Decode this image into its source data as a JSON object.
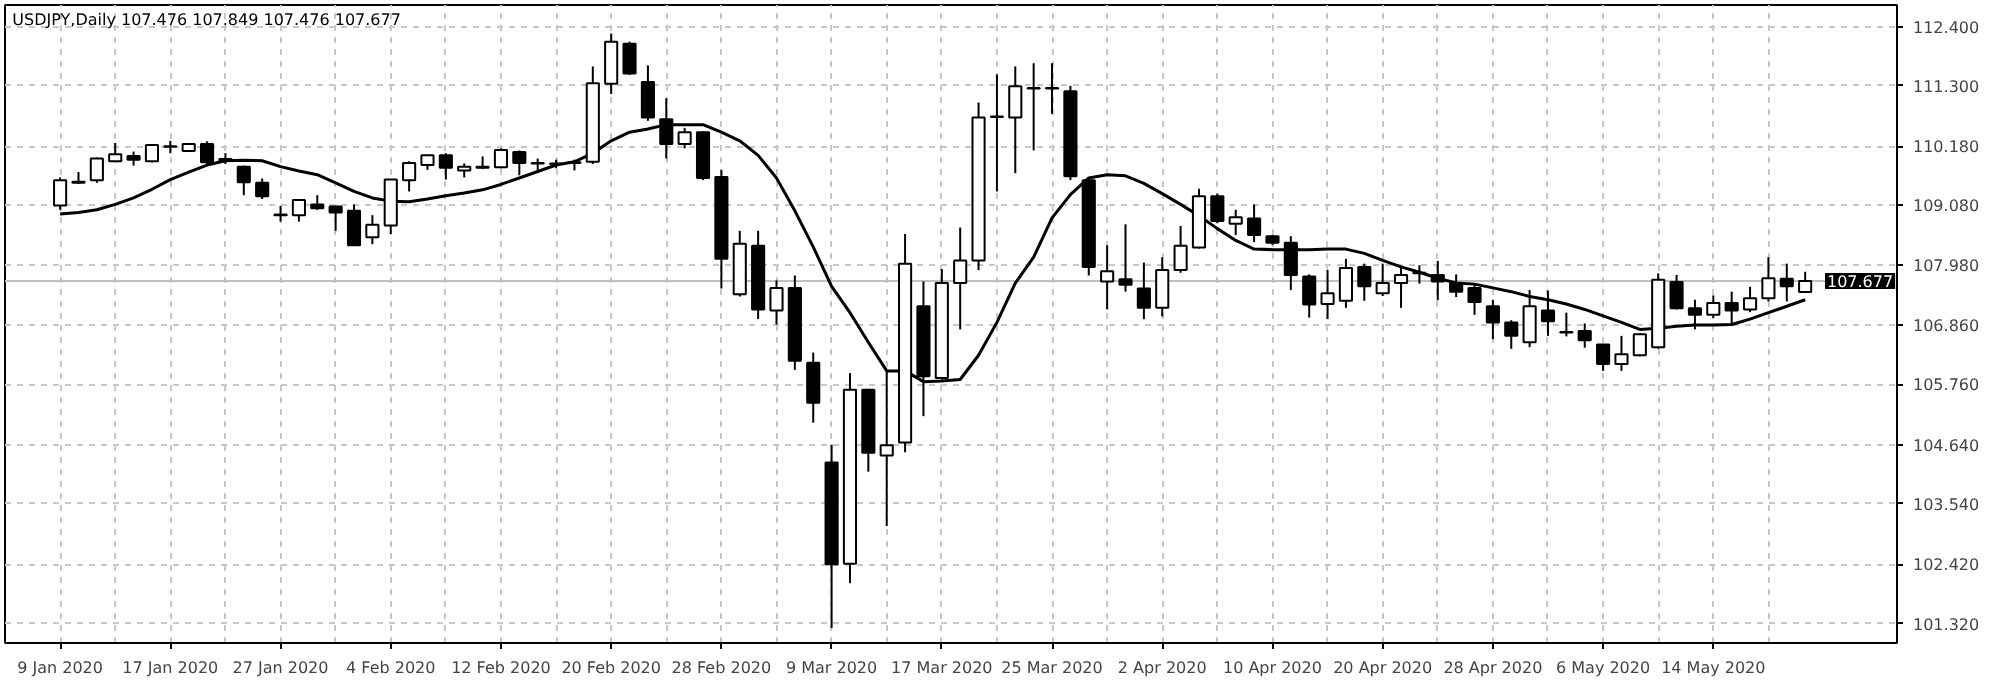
{
  "chart_data": {
    "type": "candlestick",
    "title": "USDJPY,Daily 107.476 107.849 107.476 107.677",
    "categories": [
      "9 Jan 2020",
      null,
      null,
      null,
      null,
      null,
      "17 Jan 2020",
      null,
      null,
      null,
      null,
      null,
      "27 Jan 2020",
      null,
      null,
      null,
      null,
      null,
      "4 Feb 2020",
      null,
      null,
      null,
      null,
      null,
      "12 Feb 2020",
      null,
      null,
      null,
      null,
      null,
      "20 Feb 2020",
      null,
      null,
      null,
      null,
      null,
      "28 Feb 2020",
      null,
      null,
      null,
      null,
      null,
      "9 Mar 2020",
      null,
      null,
      null,
      null,
      null,
      "17 Mar 2020",
      null,
      null,
      null,
      null,
      null,
      "25 Mar 2020",
      null,
      null,
      null,
      null,
      null,
      "2 Apr 2020",
      null,
      null,
      null,
      null,
      null,
      "10 Apr 2020",
      null,
      null,
      null,
      null,
      null,
      "20 Apr 2020",
      null,
      null,
      null,
      null,
      null,
      "28 Apr 2020",
      null,
      null,
      null,
      null,
      null,
      "6 May 2020",
      null,
      null,
      null,
      null,
      null,
      "14 May 2020",
      null,
      null,
      null,
      null,
      null
    ],
    "ohlc": [
      [
        109.08,
        109.6,
        109.0,
        109.55
      ],
      [
        109.5,
        109.7,
        109.48,
        109.52
      ],
      [
        109.55,
        109.97,
        109.5,
        109.95
      ],
      [
        109.9,
        110.24,
        109.9,
        110.03
      ],
      [
        110.0,
        110.08,
        109.82,
        109.93
      ],
      [
        109.9,
        110.22,
        109.88,
        110.2
      ],
      [
        110.17,
        110.28,
        110.05,
        110.18
      ],
      [
        110.09,
        110.24,
        110.08,
        110.22
      ],
      [
        110.22,
        110.27,
        109.85,
        109.88
      ],
      [
        109.92,
        110.05,
        109.85,
        109.94
      ],
      [
        109.8,
        109.82,
        109.27,
        109.51
      ],
      [
        109.5,
        109.58,
        109.2,
        109.25
      ],
      [
        108.91,
        109.07,
        108.78,
        108.9
      ],
      [
        108.9,
        109.2,
        108.78,
        109.18
      ],
      [
        109.1,
        109.27,
        109.0,
        109.03
      ],
      [
        109.06,
        109.08,
        108.61,
        108.95
      ],
      [
        108.98,
        109.1,
        108.34,
        108.34
      ],
      [
        108.49,
        108.9,
        108.36,
        108.72
      ],
      [
        108.71,
        109.57,
        108.55,
        109.56
      ],
      [
        109.55,
        109.9,
        109.34,
        109.87
      ],
      [
        109.83,
        110.02,
        109.74,
        110.01
      ],
      [
        110.01,
        110.05,
        109.56,
        109.78
      ],
      [
        109.73,
        109.86,
        109.6,
        109.8
      ],
      [
        109.78,
        109.99,
        109.76,
        109.8
      ],
      [
        109.79,
        110.14,
        109.77,
        110.11
      ],
      [
        110.07,
        110.1,
        109.64,
        109.87
      ],
      [
        109.86,
        109.95,
        109.74,
        109.87
      ],
      [
        109.85,
        109.93,
        109.77,
        109.86
      ],
      [
        109.87,
        109.93,
        109.73,
        109.88
      ],
      [
        109.89,
        111.66,
        109.85,
        111.35
      ],
      [
        111.34,
        112.27,
        111.15,
        112.12
      ],
      [
        112.08,
        112.12,
        111.5,
        111.53
      ],
      [
        111.37,
        111.68,
        110.65,
        110.71
      ],
      [
        110.68,
        111.07,
        109.95,
        110.22
      ],
      [
        110.22,
        110.52,
        110.14,
        110.44
      ],
      [
        110.44,
        110.45,
        109.55,
        109.59
      ],
      [
        109.61,
        109.74,
        107.54,
        108.09
      ],
      [
        107.43,
        108.61,
        107.39,
        108.37
      ],
      [
        108.33,
        108.61,
        106.97,
        107.15
      ],
      [
        107.13,
        107.69,
        106.87,
        107.55
      ],
      [
        107.55,
        107.78,
        106.03,
        106.2
      ],
      [
        106.16,
        106.35,
        105.05,
        105.42
      ],
      [
        104.31,
        104.64,
        101.24,
        102.42
      ],
      [
        102.43,
        105.97,
        102.07,
        105.66
      ],
      [
        105.66,
        105.67,
        104.14,
        104.49
      ],
      [
        104.44,
        105.99,
        103.13,
        104.63
      ],
      [
        104.68,
        108.55,
        104.5,
        108.0
      ],
      [
        107.21,
        107.67,
        105.17,
        105.91
      ],
      [
        105.88,
        107.9,
        105.85,
        107.64
      ],
      [
        107.64,
        108.67,
        106.78,
        108.06
      ],
      [
        108.06,
        110.99,
        107.88,
        110.71
      ],
      [
        110.72,
        111.51,
        109.34,
        110.73
      ],
      [
        110.71,
        111.66,
        109.68,
        111.29
      ],
      [
        111.25,
        111.72,
        110.1,
        111.26
      ],
      [
        111.26,
        111.72,
        110.78,
        111.25
      ],
      [
        111.2,
        111.3,
        109.55,
        109.62
      ],
      [
        109.55,
        109.6,
        107.78,
        107.94
      ],
      [
        107.67,
        108.34,
        107.15,
        107.86
      ],
      [
        107.71,
        108.73,
        107.48,
        107.61
      ],
      [
        107.54,
        108.02,
        106.97,
        107.18
      ],
      [
        107.18,
        108.12,
        107.02,
        107.88
      ],
      [
        107.88,
        108.7,
        107.83,
        108.33
      ],
      [
        108.3,
        109.39,
        108.28,
        109.25
      ],
      [
        109.25,
        109.3,
        108.75,
        108.79
      ],
      [
        108.74,
        109.0,
        108.53,
        108.86
      ],
      [
        108.84,
        109.1,
        108.4,
        108.53
      ],
      [
        108.51,
        108.53,
        108.35,
        108.39
      ],
      [
        108.39,
        108.51,
        107.51,
        107.79
      ],
      [
        107.76,
        107.8,
        107.0,
        107.24
      ],
      [
        107.25,
        107.88,
        106.97,
        107.45
      ],
      [
        107.31,
        108.09,
        107.18,
        107.92
      ],
      [
        107.94,
        108.0,
        107.31,
        107.58
      ],
      [
        107.45,
        108.0,
        107.4,
        107.64
      ],
      [
        107.64,
        107.95,
        107.18,
        107.79
      ],
      [
        107.82,
        107.97,
        107.63,
        107.83
      ],
      [
        107.79,
        108.05,
        107.32,
        107.67
      ],
      [
        107.64,
        107.8,
        107.38,
        107.48
      ],
      [
        107.55,
        107.63,
        107.05,
        107.29
      ],
      [
        107.21,
        107.33,
        106.6,
        106.91
      ],
      [
        106.91,
        106.95,
        106.42,
        106.66
      ],
      [
        106.54,
        107.51,
        106.45,
        107.21
      ],
      [
        107.13,
        107.5,
        106.66,
        106.93
      ],
      [
        106.72,
        107.09,
        106.65,
        106.73
      ],
      [
        106.75,
        106.89,
        106.44,
        106.58
      ],
      [
        106.5,
        106.5,
        106.01,
        106.14
      ],
      [
        106.14,
        106.66,
        106.01,
        106.32
      ],
      [
        106.3,
        106.71,
        106.28,
        106.69
      ],
      [
        106.45,
        107.82,
        106.42,
        107.7
      ],
      [
        107.66,
        107.79,
        107.15,
        107.17
      ],
      [
        107.17,
        107.33,
        106.78,
        107.05
      ],
      [
        107.05,
        107.41,
        106.99,
        107.27
      ],
      [
        107.27,
        107.48,
        106.86,
        107.13
      ],
      [
        107.15,
        107.57,
        107.1,
        107.36
      ],
      [
        107.36,
        108.12,
        107.3,
        107.73
      ],
      [
        107.72,
        108.0,
        107.3,
        107.58
      ],
      [
        107.476,
        107.849,
        107.476,
        107.677
      ]
    ],
    "series": [
      {
        "type": "line",
        "color": "#000000",
        "values": [
          108.92,
          108.95,
          109.0,
          109.1,
          109.22,
          109.38,
          109.56,
          109.7,
          109.83,
          109.91,
          109.92,
          109.91,
          109.8,
          109.72,
          109.65,
          109.5,
          109.34,
          109.22,
          109.16,
          109.15,
          109.2,
          109.26,
          109.31,
          109.37,
          109.47,
          109.59,
          109.71,
          109.83,
          109.89,
          110.05,
          110.28,
          110.44,
          110.5,
          110.58,
          110.58,
          110.58,
          110.44,
          110.28,
          110.01,
          109.59,
          108.98,
          108.31,
          107.58,
          107.09,
          106.54,
          106.01,
          106.01,
          105.81,
          105.82,
          105.85,
          106.3,
          106.91,
          107.64,
          108.12,
          108.85,
          109.28,
          109.59,
          109.65,
          109.63,
          109.49,
          109.3,
          109.1,
          108.89,
          108.65,
          108.43,
          108.27,
          108.26,
          108.26,
          108.26,
          108.27,
          108.27,
          108.19,
          108.06,
          107.94,
          107.84,
          107.73,
          107.64,
          107.62,
          107.55,
          107.48,
          107.39,
          107.33,
          107.25,
          107.15,
          107.03,
          106.91,
          106.78,
          106.8,
          106.84,
          106.86,
          106.86,
          106.87,
          106.97,
          107.09,
          107.21,
          107.33
        ]
      }
    ],
    "ylim": [
      100.96,
      112.8
    ],
    "yticks": [
      {
        "value": 101.32,
        "label": "101.320"
      },
      {
        "value": 102.42,
        "label": "102.420"
      },
      {
        "value": 103.54,
        "label": "103.540"
      },
      {
        "value": 104.64,
        "label": "104.640"
      },
      {
        "value": 105.76,
        "label": "105.760"
      },
      {
        "value": 106.86,
        "label": "106.860"
      },
      {
        "value": 107.98,
        "label": "107.980"
      },
      {
        "value": 109.08,
        "label": "109.080"
      },
      {
        "value": 110.18,
        "label": "110.180"
      },
      {
        "value": 111.3,
        "label": "111.300"
      },
      {
        "value": 112.4,
        "label": "112.400"
      }
    ],
    "ref_lines": [
      {
        "axis": "y",
        "value": 107.677,
        "label": "107.677",
        "color": "#c0c0c0"
      }
    ],
    "grid": true
  }
}
